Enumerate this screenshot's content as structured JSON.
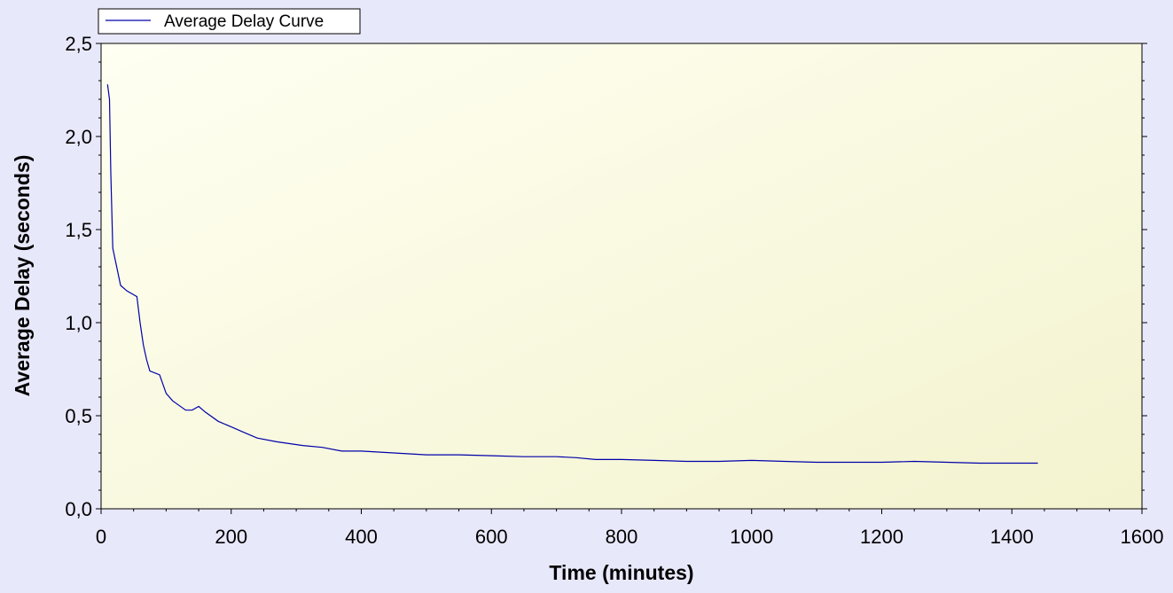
{
  "chart_data": {
    "type": "line",
    "title": "",
    "xlabel": "Time (minutes)",
    "ylabel": "Average Delay (seconds)",
    "xlim": [
      0,
      1600
    ],
    "ylim": [
      0,
      2.5
    ],
    "x_ticks": [
      "0",
      "200",
      "400",
      "600",
      "800",
      "1000",
      "1200",
      "1400",
      "1600"
    ],
    "y_ticks": [
      "0,0",
      "0,5",
      "1,0",
      "1,5",
      "2,0",
      "2,5"
    ],
    "grid": false,
    "legend_position": "top-left",
    "series": [
      {
        "name": "Average Delay Curve",
        "color": "#0000aa",
        "x": [
          10,
          13,
          15,
          18,
          30,
          40,
          55,
          60,
          65,
          70,
          75,
          90,
          100,
          110,
          130,
          140,
          150,
          160,
          180,
          200,
          220,
          240,
          270,
          290,
          310,
          340,
          370,
          400,
          450,
          500,
          550,
          600,
          650,
          700,
          730,
          760,
          800,
          850,
          900,
          950,
          1000,
          1050,
          1100,
          1150,
          1200,
          1250,
          1300,
          1350,
          1400,
          1440
        ],
        "y": [
          2.28,
          2.2,
          1.8,
          1.4,
          1.2,
          1.17,
          1.14,
          1.0,
          0.88,
          0.8,
          0.74,
          0.72,
          0.62,
          0.58,
          0.53,
          0.53,
          0.55,
          0.52,
          0.47,
          0.44,
          0.41,
          0.38,
          0.36,
          0.35,
          0.34,
          0.33,
          0.31,
          0.31,
          0.3,
          0.29,
          0.29,
          0.285,
          0.28,
          0.28,
          0.275,
          0.265,
          0.265,
          0.26,
          0.255,
          0.255,
          0.26,
          0.255,
          0.25,
          0.25,
          0.25,
          0.255,
          0.25,
          0.245,
          0.245,
          0.245
        ]
      }
    ]
  }
}
